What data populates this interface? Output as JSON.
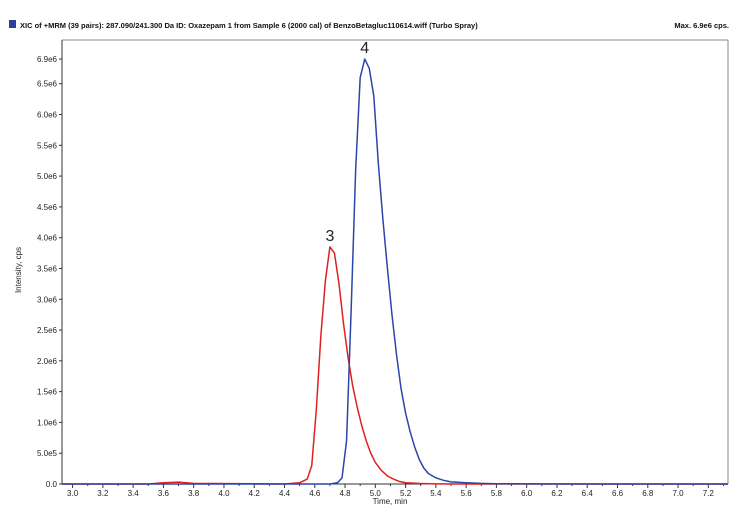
{
  "header": {
    "title": "XIC of +MRM (39 pairs): 287.090/241.300 Da ID: Oxazepam 1 from Sample 6 (2000 cal) of BenzoBetagluc110614.wiff (Turbo Spray)",
    "max_label": "Max. 6.9e6 cps.",
    "marker_color": "#2b3f96"
  },
  "chart_data": {
    "type": "line",
    "title": "XIC of +MRM (39 pairs): 287.090/241.300 Da ID: Oxazepam 1 from Sample 6 (2000 cal) of BenzoBetagluc110614.wiff (Turbo Spray)",
    "xlabel": "Time, min",
    "ylabel": "Intensity, cps",
    "xlim": [
      2.93,
      7.33
    ],
    "ylim": [
      0,
      6950000.0
    ],
    "x_ticks": [
      3.0,
      3.2,
      3.4,
      3.6,
      3.8,
      4.0,
      4.2,
      4.4,
      4.6,
      4.8,
      5.0,
      5.2,
      5.4,
      5.6,
      5.8,
      6.0,
      6.2,
      6.4,
      6.6,
      6.8,
      7.0,
      7.2
    ],
    "x_tick_labels": [
      "3.0",
      "3.2",
      "3.4",
      "3.6",
      "3.8",
      "4.0",
      "4.2",
      "4.4",
      "4.6",
      "4.8",
      "5.0",
      "5.2",
      "5.4",
      "5.6",
      "5.8",
      "6.0",
      "6.2",
      "6.4",
      "6.6",
      "6.8",
      "7.0",
      "7.2"
    ],
    "y_ticks": [
      0,
      500000.0,
      1000000.0,
      1500000.0,
      2000000.0,
      2500000.0,
      3000000.0,
      3500000.0,
      4000000.0,
      4500000.0,
      5000000.0,
      5500000.0,
      6000000.0,
      6500000.0,
      6900000.0
    ],
    "y_tick_labels": [
      "0.0",
      "5.0e5",
      "1.0e6",
      "1.5e6",
      "2.0e6",
      "2.5e6",
      "3.0e6",
      "3.5e6",
      "4.0e6",
      "4.5e6",
      "5.0e6",
      "5.5e6",
      "6.0e6",
      "6.5e6",
      "6.9e6"
    ],
    "grid": false,
    "series": [
      {
        "color": "#e02020",
        "x": [
          2.93,
          3.5,
          3.6,
          3.7,
          3.8,
          4.4,
          4.5,
          4.55,
          4.58,
          4.61,
          4.64,
          4.67,
          4.7,
          4.73,
          4.76,
          4.79,
          4.82,
          4.85,
          4.88,
          4.91,
          4.94,
          4.97,
          5.0,
          5.04,
          5.08,
          5.12,
          5.16,
          5.2,
          5.3,
          5.4,
          5.6,
          6.0,
          7.33
        ],
        "y": [
          0,
          0,
          20000,
          30000,
          10000,
          0,
          20000,
          80000,
          300000,
          1200000,
          2400000,
          3300000,
          3850000,
          3750000,
          3250000,
          2600000,
          2050000,
          1600000,
          1250000,
          950000,
          700000,
          500000,
          350000,
          220000,
          130000,
          80000,
          40000,
          20000,
          8000,
          3000,
          0,
          0,
          0
        ]
      },
      {
        "color": "#2b45a8",
        "x": [
          2.93,
          4.7,
          4.75,
          4.78,
          4.81,
          4.84,
          4.87,
          4.9,
          4.93,
          4.96,
          4.99,
          5.02,
          5.05,
          5.08,
          5.11,
          5.14,
          5.17,
          5.2,
          5.23,
          5.26,
          5.29,
          5.32,
          5.35,
          5.4,
          5.45,
          5.5,
          5.6,
          5.7,
          5.8,
          6.0,
          6.5,
          7.33
        ],
        "y": [
          0,
          0,
          20000,
          100000,
          700000,
          2800000,
          5100000,
          6600000,
          6900000,
          6750000,
          6300000,
          5200000,
          4300000,
          3500000,
          2750000,
          2100000,
          1550000,
          1150000,
          850000,
          600000,
          400000,
          260000,
          170000,
          100000,
          60000,
          35000,
          20000,
          10000,
          5000,
          2000,
          0,
          0
        ]
      }
    ],
    "annotations": [
      {
        "text": "3",
        "x": 4.7,
        "y": 3850000.0
      },
      {
        "text": "4",
        "x": 4.93,
        "y": 6900000.0
      }
    ]
  }
}
